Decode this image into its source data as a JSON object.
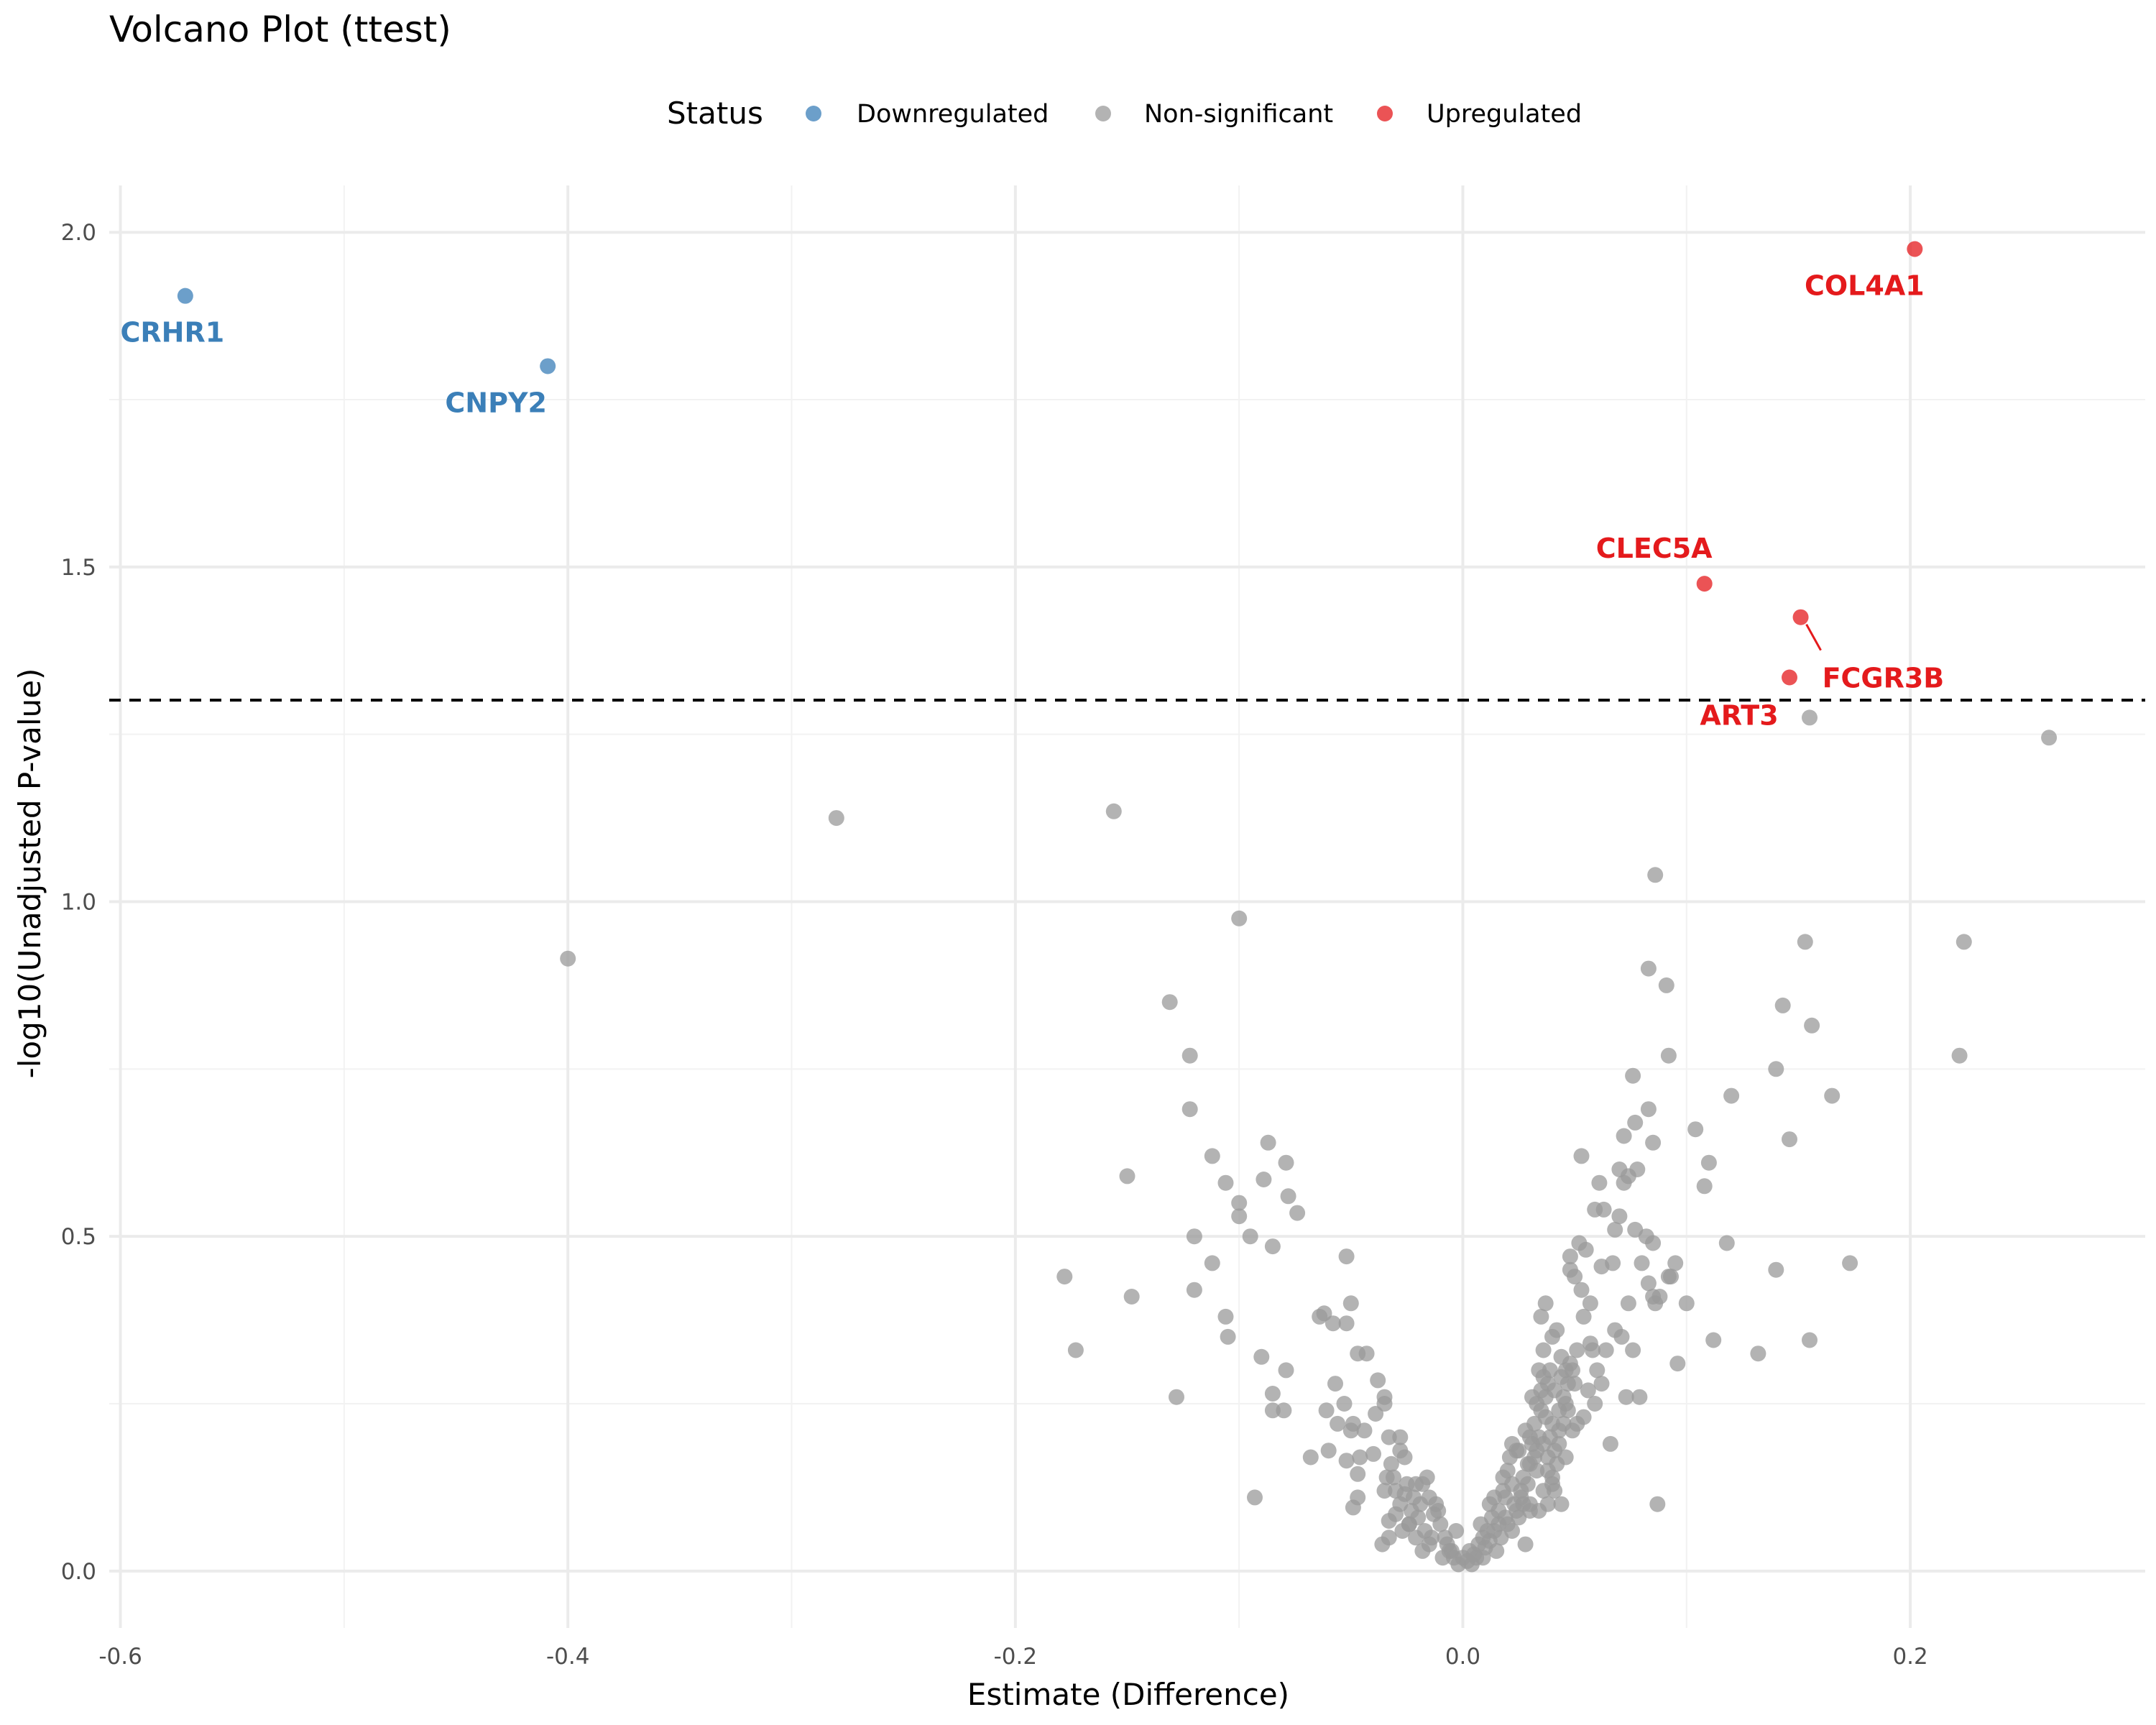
{
  "chart_data": {
    "type": "scatter",
    "title": "Volcano Plot (ttest)",
    "xlabel": "Estimate (Difference)",
    "ylabel": "-log10(Unadjusted P-value)",
    "xlim": [
      -0.605,
      0.305
    ],
    "ylim": [
      -0.085,
      2.07
    ],
    "x_ticks": [
      -0.6,
      -0.4,
      -0.2,
      0.0,
      0.2
    ],
    "x_tick_labels": [
      "-0.6",
      "-0.4",
      "-0.2",
      "0.0",
      "0.2"
    ],
    "y_ticks": [
      0.0,
      0.5,
      1.0,
      1.5,
      2.0
    ],
    "y_tick_labels": [
      "0.0",
      "0.5",
      "1.0",
      "1.5",
      "2.0"
    ],
    "threshold": 1.301,
    "legend": {
      "title": "Status",
      "position": "top",
      "entries": [
        {
          "label": "Downregulated",
          "color": "#3b7fb8"
        },
        {
          "label": "Non-significant",
          "color": "#999999"
        },
        {
          "label": "Upregulated",
          "color": "#e41a1c"
        }
      ]
    },
    "colors": {
      "Downregulated": "#3b7fb8",
      "Non-significant": "#999999",
      "Upregulated": "#e41a1c"
    },
    "labeled_points": [
      {
        "gene": "CRHR1",
        "x": -0.571,
        "y": 1.905,
        "status": "Downregulated"
      },
      {
        "gene": "CNPY2",
        "x": -0.409,
        "y": 1.8,
        "status": "Downregulated"
      },
      {
        "gene": "COL4A1",
        "x": 0.202,
        "y": 1.975,
        "status": "Upregulated"
      },
      {
        "gene": "CLEC5A",
        "x": 0.108,
        "y": 1.475,
        "status": "Upregulated"
      },
      {
        "gene": "FCGR3B",
        "x": 0.151,
        "y": 1.425,
        "status": "Upregulated"
      },
      {
        "gene": "ART3",
        "x": 0.146,
        "y": 1.335,
        "status": "Upregulated"
      }
    ],
    "points": [
      [
        -0.4,
        0.915
      ],
      [
        -0.28,
        1.125
      ],
      [
        -0.156,
        1.135
      ],
      [
        -0.1,
        0.975
      ],
      [
        0.086,
        1.04
      ],
      [
        0.155,
        1.275
      ],
      [
        0.262,
        1.245
      ],
      [
        0.224,
        0.94
      ],
      [
        0.153,
        0.94
      ],
      [
        0.143,
        0.845
      ],
      [
        0.156,
        0.815
      ],
      [
        0.222,
        0.77
      ],
      [
        0.14,
        0.75
      ],
      [
        0.165,
        0.71
      ],
      [
        0.12,
        0.71
      ],
      [
        0.146,
        0.645
      ],
      [
        0.104,
        0.66
      ],
      [
        0.11,
        0.61
      ],
      [
        0.108,
        0.575
      ],
      [
        0.173,
        0.46
      ],
      [
        0.14,
        0.45
      ],
      [
        0.118,
        0.49
      ],
      [
        0.112,
        0.345
      ],
      [
        0.132,
        0.325
      ],
      [
        0.155,
        0.345
      ],
      [
        -0.131,
        0.85
      ],
      [
        -0.122,
        0.77
      ],
      [
        -0.122,
        0.69
      ],
      [
        -0.112,
        0.62
      ],
      [
        -0.106,
        0.58
      ],
      [
        -0.15,
        0.59
      ],
      [
        -0.087,
        0.64
      ],
      [
        -0.079,
        0.61
      ],
      [
        -0.078,
        0.56
      ],
      [
        -0.074,
        0.535
      ],
      [
        -0.1,
        0.55
      ],
      [
        -0.1,
        0.53
      ],
      [
        -0.089,
        0.585
      ],
      [
        -0.095,
        0.5
      ],
      [
        -0.12,
        0.5
      ],
      [
        -0.085,
        0.485
      ],
      [
        -0.112,
        0.46
      ],
      [
        -0.178,
        0.44
      ],
      [
        -0.148,
        0.41
      ],
      [
        -0.12,
        0.42
      ],
      [
        -0.106,
        0.38
      ],
      [
        -0.105,
        0.35
      ],
      [
        -0.173,
        0.33
      ],
      [
        -0.128,
        0.26
      ],
      [
        -0.09,
        0.32
      ],
      [
        -0.085,
        0.265
      ],
      [
        -0.079,
        0.3
      ],
      [
        -0.085,
        0.24
      ],
      [
        -0.08,
        0.24
      ],
      [
        -0.093,
        0.11
      ],
      [
        -0.068,
        0.17
      ],
      [
        -0.064,
        0.38
      ],
      [
        -0.062,
        0.385
      ],
      [
        -0.058,
        0.37
      ],
      [
        -0.05,
        0.4
      ],
      [
        -0.052,
        0.37
      ],
      [
        -0.047,
        0.325
      ],
      [
        -0.043,
        0.325
      ],
      [
        -0.057,
        0.28
      ],
      [
        -0.061,
        0.24
      ],
      [
        -0.053,
        0.25
      ],
      [
        -0.049,
        0.22
      ],
      [
        -0.044,
        0.21
      ],
      [
        -0.052,
        0.47
      ],
      [
        -0.038,
        0.285
      ],
      [
        -0.035,
        0.26
      ],
      [
        -0.035,
        0.25
      ],
      [
        -0.039,
        0.235
      ],
      [
        -0.033,
        0.2
      ],
      [
        -0.028,
        0.2
      ],
      [
        -0.06,
        0.18
      ],
      [
        -0.056,
        0.22
      ],
      [
        -0.05,
        0.21
      ],
      [
        -0.046,
        0.17
      ],
      [
        -0.052,
        0.165
      ],
      [
        -0.047,
        0.145
      ],
      [
        -0.049,
        0.095
      ],
      [
        -0.047,
        0.11
      ],
      [
        -0.04,
        0.175
      ],
      [
        -0.032,
        0.16
      ],
      [
        -0.028,
        0.18
      ],
      [
        -0.026,
        0.17
      ],
      [
        -0.034,
        0.14
      ],
      [
        -0.03,
        0.12
      ],
      [
        -0.025,
        0.13
      ],
      [
        -0.035,
        0.12
      ],
      [
        -0.033,
        0.075
      ],
      [
        -0.03,
        0.085
      ],
      [
        -0.027,
        0.06
      ],
      [
        -0.024,
        0.07
      ],
      [
        -0.036,
        0.04
      ],
      [
        -0.033,
        0.05
      ],
      [
        -0.028,
        0.1
      ],
      [
        -0.022,
        0.11
      ],
      [
        -0.018,
        0.13
      ],
      [
        -0.016,
        0.14
      ],
      [
        -0.015,
        0.11
      ],
      [
        -0.012,
        0.1
      ],
      [
        -0.02,
        0.08
      ],
      [
        -0.017,
        0.06
      ],
      [
        -0.014,
        0.05
      ],
      [
        -0.018,
        0.03
      ],
      [
        -0.015,
        0.04
      ],
      [
        -0.01,
        0.07
      ],
      [
        -0.008,
        0.05
      ],
      [
        -0.011,
        0.09
      ],
      [
        -0.013,
        0.085
      ],
      [
        -0.007,
        0.04
      ],
      [
        -0.005,
        0.03
      ],
      [
        -0.004,
        0.02
      ],
      [
        -0.002,
        0.01
      ],
      [
        0.0,
        0.02
      ],
      [
        0.002,
        0.015
      ],
      [
        0.003,
        0.03
      ],
      [
        0.005,
        0.025
      ],
      [
        0.007,
        0.04
      ],
      [
        0.009,
        0.05
      ],
      [
        0.011,
        0.06
      ],
      [
        0.013,
        0.08
      ],
      [
        0.008,
        0.07
      ],
      [
        0.012,
        0.1
      ],
      [
        0.014,
        0.11
      ],
      [
        0.016,
        0.09
      ],
      [
        0.018,
        0.12
      ],
      [
        0.02,
        0.07
      ],
      [
        0.022,
        0.06
      ],
      [
        0.024,
        0.09
      ],
      [
        0.026,
        0.11
      ],
      [
        0.028,
        0.04
      ],
      [
        0.03,
        0.09
      ],
      [
        0.021,
        0.17
      ],
      [
        0.022,
        0.19
      ],
      [
        0.025,
        0.18
      ],
      [
        0.027,
        0.14
      ],
      [
        0.029,
        0.16
      ],
      [
        0.03,
        0.2
      ],
      [
        0.032,
        0.22
      ],
      [
        0.033,
        0.25
      ],
      [
        0.035,
        0.27
      ],
      [
        0.036,
        0.29
      ],
      [
        0.028,
        0.21
      ],
      [
        0.031,
        0.26
      ],
      [
        0.034,
        0.3
      ],
      [
        0.036,
        0.33
      ],
      [
        0.038,
        0.28
      ],
      [
        0.037,
        0.23
      ],
      [
        0.039,
        0.2
      ],
      [
        0.041,
        0.18
      ],
      [
        0.043,
        0.24
      ],
      [
        0.045,
        0.26
      ],
      [
        0.035,
        0.38
      ],
      [
        0.037,
        0.4
      ],
      [
        0.04,
        0.35
      ],
      [
        0.042,
        0.36
      ],
      [
        0.044,
        0.32
      ],
      [
        0.046,
        0.3
      ],
      [
        0.048,
        0.31
      ],
      [
        0.05,
        0.28
      ],
      [
        0.033,
        0.15
      ],
      [
        0.036,
        0.12
      ],
      [
        0.038,
        0.1
      ],
      [
        0.04,
        0.13
      ],
      [
        0.042,
        0.16
      ],
      [
        0.048,
        0.45
      ],
      [
        0.048,
        0.47
      ],
      [
        0.05,
        0.44
      ],
      [
        0.052,
        0.49
      ],
      [
        0.053,
        0.42
      ],
      [
        0.055,
        0.48
      ],
      [
        0.057,
        0.4
      ],
      [
        0.054,
        0.38
      ],
      [
        0.058,
        0.33
      ],
      [
        0.06,
        0.3
      ],
      [
        0.062,
        0.28
      ],
      [
        0.056,
        0.27
      ],
      [
        0.053,
        0.62
      ],
      [
        0.059,
        0.54
      ],
      [
        0.061,
        0.58
      ],
      [
        0.063,
        0.54
      ],
      [
        0.062,
        0.455
      ],
      [
        0.067,
        0.46
      ],
      [
        0.068,
        0.51
      ],
      [
        0.07,
        0.53
      ],
      [
        0.072,
        0.58
      ],
      [
        0.072,
        0.65
      ],
      [
        0.07,
        0.6
      ],
      [
        0.074,
        0.59
      ],
      [
        0.076,
        0.74
      ],
      [
        0.077,
        0.67
      ],
      [
        0.078,
        0.6
      ],
      [
        0.083,
        0.9
      ],
      [
        0.085,
        0.64
      ],
      [
        0.083,
        0.69
      ],
      [
        0.091,
        0.875
      ],
      [
        0.092,
        0.77
      ],
      [
        0.077,
        0.51
      ],
      [
        0.08,
        0.46
      ],
      [
        0.082,
        0.5
      ],
      [
        0.085,
        0.49
      ],
      [
        0.083,
        0.43
      ],
      [
        0.085,
        0.41
      ],
      [
        0.088,
        0.41
      ],
      [
        0.092,
        0.44
      ],
      [
        0.095,
        0.46
      ],
      [
        0.093,
        0.44
      ],
      [
        0.086,
        0.4
      ],
      [
        0.1,
        0.4
      ],
      [
        0.096,
        0.31
      ],
      [
        0.074,
        0.4
      ],
      [
        0.071,
        0.35
      ],
      [
        0.076,
        0.33
      ],
      [
        0.073,
        0.26
      ],
      [
        0.079,
        0.26
      ],
      [
        0.066,
        0.19
      ],
      [
        0.087,
        0.1
      ],
      [
        0.054,
        0.23
      ],
      [
        0.057,
        0.34
      ],
      [
        0.059,
        0.25
      ],
      [
        0.064,
        0.33
      ],
      [
        0.068,
        0.36
      ],
      [
        0.026,
        0.12
      ],
      [
        0.03,
        0.1
      ],
      [
        0.034,
        0.09
      ],
      [
        0.04,
        0.14
      ],
      [
        0.044,
        0.1
      ],
      [
        0.046,
        0.17
      ],
      [
        0.049,
        0.21
      ],
      [
        0.051,
        0.22
      ],
      [
        0.024,
        0.18
      ],
      [
        0.031,
        0.19
      ],
      [
        0.015,
        0.03
      ],
      [
        0.017,
        0.05
      ],
      [
        0.019,
        0.08
      ],
      [
        0.014,
        0.06
      ],
      [
        0.016,
        0.07
      ],
      [
        0.006,
        0.02
      ],
      [
        0.01,
        0.035
      ],
      [
        0.004,
        0.01
      ],
      [
        0.009,
        0.02
      ],
      [
        0.012,
        0.045
      ],
      [
        -0.003,
        0.06
      ],
      [
        -0.006,
        0.03
      ],
      [
        -0.009,
        0.02
      ],
      [
        -0.021,
        0.05
      ],
      [
        -0.023,
        0.09
      ],
      [
        -0.019,
        0.1
      ],
      [
        -0.026,
        0.115
      ],
      [
        -0.031,
        0.14
      ],
      [
        -0.021,
        0.13
      ],
      [
        -0.024,
        0.07
      ],
      [
        0.038,
        0.17
      ],
      [
        0.04,
        0.22
      ],
      [
        0.043,
        0.19
      ],
      [
        0.035,
        0.24
      ],
      [
        0.037,
        0.26
      ],
      [
        0.039,
        0.3
      ],
      [
        0.041,
        0.27
      ],
      [
        0.044,
        0.29
      ],
      [
        0.046,
        0.25
      ],
      [
        0.047,
        0.28
      ],
      [
        0.049,
        0.3
      ],
      [
        0.051,
        0.33
      ],
      [
        0.047,
        0.24
      ],
      [
        0.045,
        0.22
      ],
      [
        0.043,
        0.21
      ],
      [
        0.034,
        0.2
      ],
      [
        0.032,
        0.17
      ],
      [
        0.029,
        0.13
      ],
      [
        0.027,
        0.1
      ],
      [
        0.025,
        0.08
      ],
      [
        0.023,
        0.1
      ],
      [
        0.019,
        0.11
      ],
      [
        0.018,
        0.14
      ],
      [
        0.02,
        0.15
      ],
      [
        0.022,
        0.13
      ],
      [
        0.03,
        0.16
      ],
      [
        0.033,
        0.18
      ],
      [
        0.036,
        0.19
      ],
      [
        0.038,
        0.15
      ],
      [
        0.041,
        0.12
      ]
    ]
  }
}
